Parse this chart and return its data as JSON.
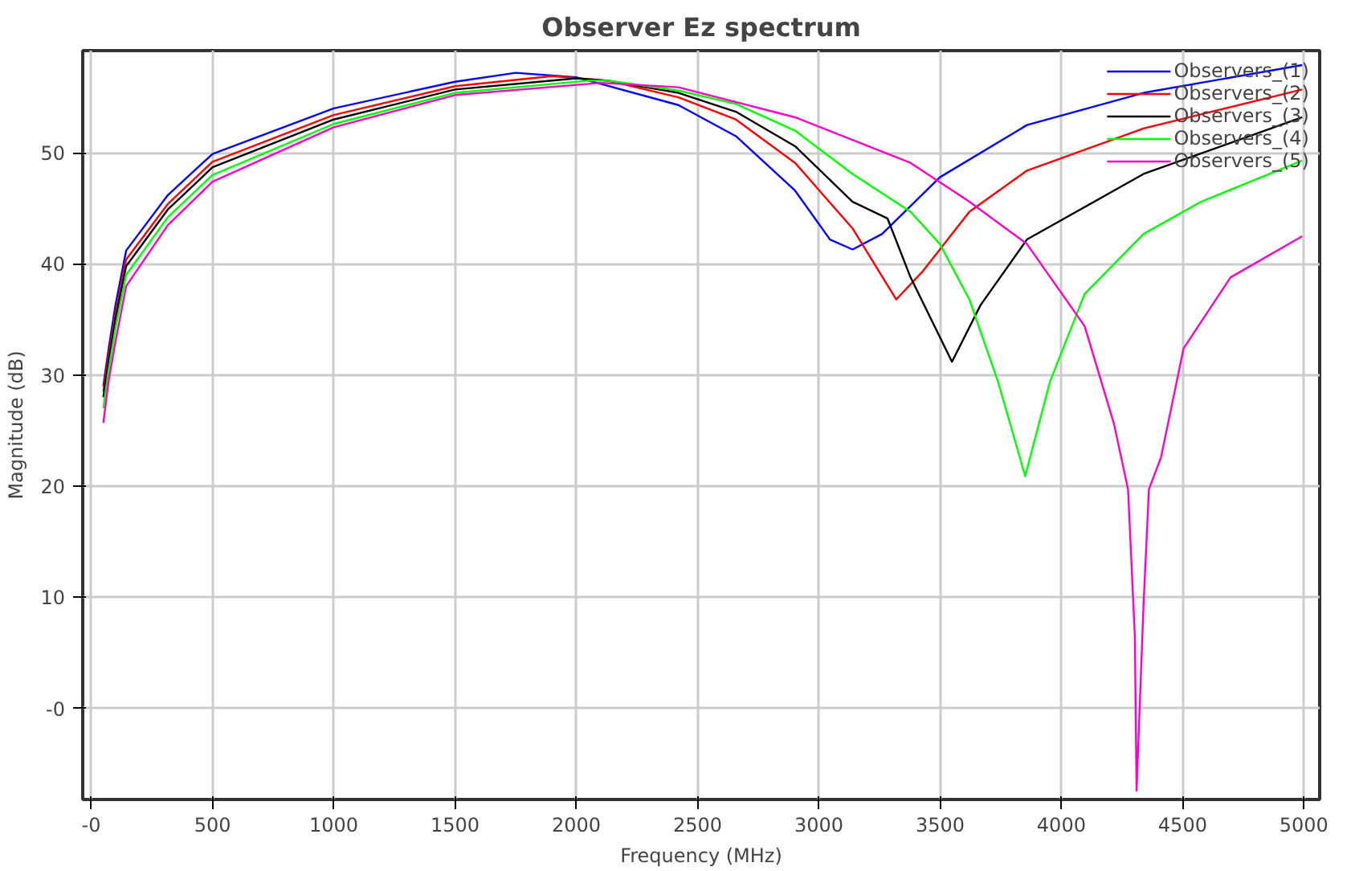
{
  "chart_data": {
    "type": "line",
    "title": "Observer Ez spectrum",
    "xlabel": "Frequency (MHz)",
    "ylabel": "Magnitude (dB)",
    "xlim": [
      -35,
      5065
    ],
    "ylim": [
      -8.2,
      59.2
    ],
    "xticks": [
      {
        "value": 0,
        "label": "-0"
      },
      500,
      1000,
      1500,
      2000,
      2500,
      3000,
      3500,
      4000,
      4500,
      5000
    ],
    "yticks": [
      {
        "value": 0,
        "label": "-0"
      },
      10,
      20,
      30,
      40,
      50
    ],
    "grid": true,
    "legend": "top right",
    "marker": "none",
    "line_style": "solid",
    "series": [
      {
        "name": "Observers_(1)",
        "color": "#0000ff",
        "x": [
          50,
          72,
          100,
          144,
          316,
          500,
          1000,
          1500,
          1750,
          2000,
          2421,
          2658,
          2902,
          3046,
          3139,
          3261,
          3499,
          3858,
          4339,
          4993
        ],
        "values": [
          29,
          32.4,
          36.3,
          41.2,
          46.2,
          49.9,
          54.0,
          56.4,
          57.2,
          56.8,
          54.3,
          51.5,
          46.6,
          42.2,
          41.3,
          42.7,
          47.8,
          52.5,
          55.4,
          57.9
        ]
      },
      {
        "name": "Observers_(2)",
        "color": "#ff0000",
        "x": [
          50,
          72,
          100,
          144,
          316,
          500,
          1000,
          1500,
          1900,
          2130,
          2421,
          2658,
          2902,
          3139,
          3319,
          3427,
          3621,
          3858,
          4339,
          4993
        ],
        "values": [
          28.5,
          31.8,
          35.5,
          40.4,
          45.4,
          49.2,
          53.4,
          56.0,
          56.9,
          56.5,
          55.0,
          53.0,
          49.1,
          43.2,
          36.8,
          39.3,
          44.7,
          48.4,
          52.2,
          55.7
        ]
      },
      {
        "name": "Observers_(3)",
        "color": "#000000",
        "x": [
          50,
          72,
          100,
          144,
          316,
          500,
          1000,
          1500,
          2000,
          2130,
          2421,
          2658,
          2902,
          3139,
          3283,
          3378,
          3549,
          3667,
          3858,
          4339,
          4993
        ],
        "values": [
          28,
          31.2,
          35.0,
          39.8,
          44.9,
          48.7,
          53.0,
          55.7,
          56.7,
          56.5,
          55.4,
          53.7,
          50.6,
          45.6,
          44.1,
          38.8,
          31.2,
          36.3,
          42.2,
          48.1,
          53.2
        ]
      },
      {
        "name": "Observers_(4)",
        "color": "#00ff00",
        "x": [
          50,
          72,
          100,
          144,
          316,
          500,
          1000,
          1500,
          2050,
          2130,
          2421,
          2658,
          2902,
          3139,
          3378,
          3499,
          3621,
          3739,
          3851,
          3953,
          4096,
          4339,
          4576,
          4993
        ],
        "values": [
          27,
          30.5,
          34.2,
          39.0,
          44.2,
          48.0,
          52.6,
          55.4,
          56.5,
          56.5,
          55.6,
          54.4,
          52.0,
          48.1,
          44.7,
          41.8,
          36.8,
          29.4,
          20.9,
          29.4,
          37.3,
          42.7,
          45.6,
          49.3
        ]
      },
      {
        "name": "Observers_(5)",
        "color": "#ff00cc",
        "x": [
          50,
          72,
          100,
          144,
          316,
          500,
          1000,
          1500,
          2100,
          2421,
          2902,
          3378,
          3621,
          3858,
          4096,
          4217,
          4275,
          4303,
          4310,
          4339,
          4361,
          4411,
          4504,
          4698,
          4993
        ],
        "values": [
          25.7,
          29.5,
          33.0,
          38.0,
          43.5,
          47.4,
          52.3,
          55.2,
          56.3,
          55.9,
          53.2,
          49.1,
          45.6,
          41.8,
          34.4,
          25.6,
          19.7,
          6.5,
          -7.4,
          9.4,
          19.7,
          22.6,
          32.4,
          38.8,
          42.5
        ]
      }
    ]
  }
}
